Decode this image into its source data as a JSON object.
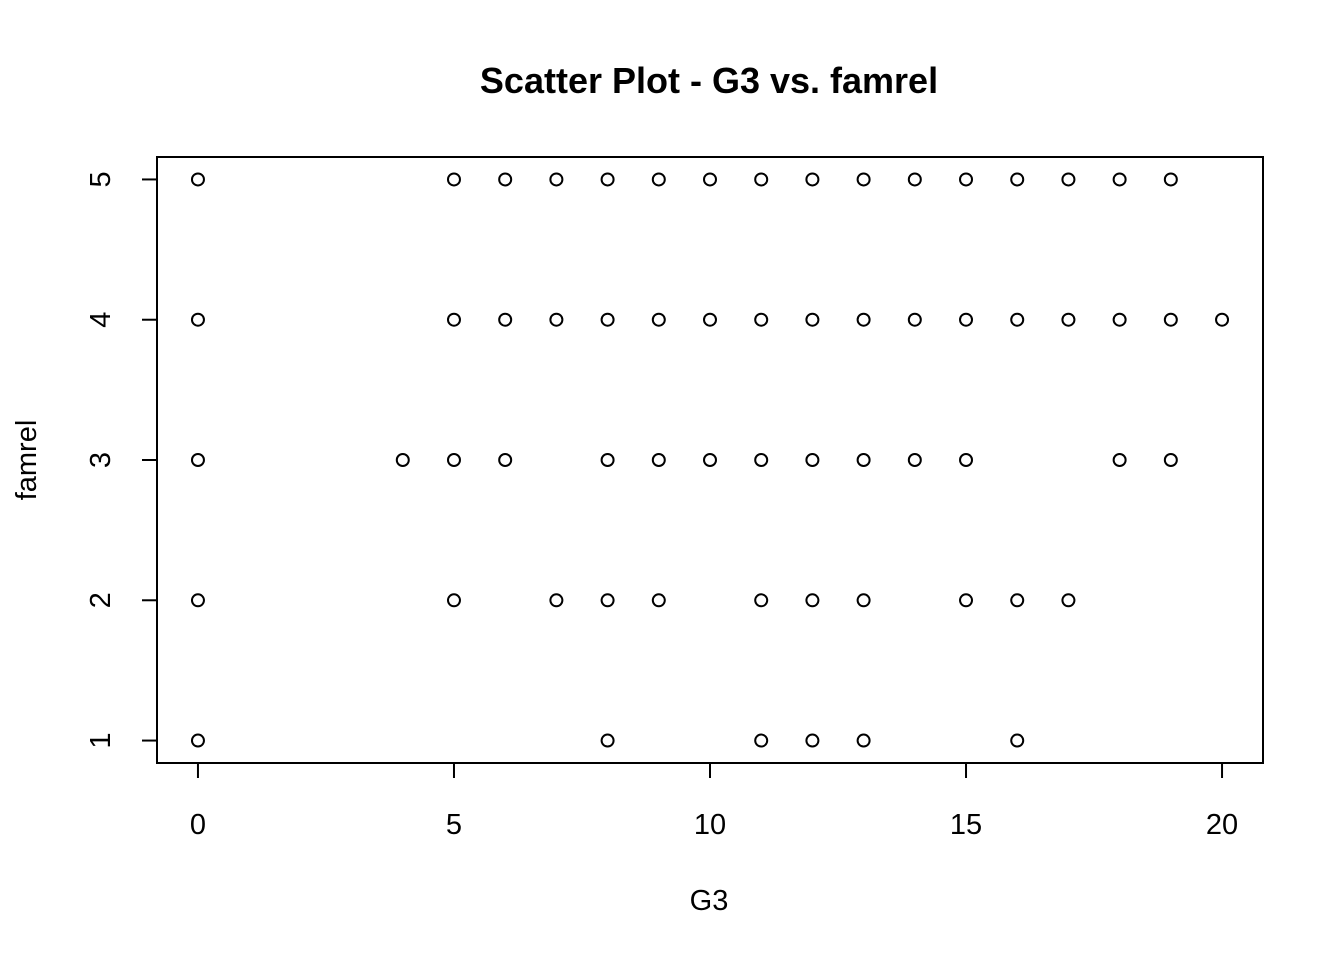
{
  "chart_data": {
    "type": "scatter",
    "title": "Scatter Plot - G3 vs. famrel",
    "xlabel": "G3",
    "ylabel": "famrel",
    "xlim": [
      -0.8,
      20.8
    ],
    "ylim": [
      0.84,
      5.16
    ],
    "x_ticks": [
      0,
      5,
      10,
      15,
      20
    ],
    "y_ticks": [
      1,
      2,
      3,
      4,
      5
    ],
    "grid": false,
    "points": [
      {
        "x": 0,
        "y": 5
      },
      {
        "x": 5,
        "y": 5
      },
      {
        "x": 6,
        "y": 5
      },
      {
        "x": 7,
        "y": 5
      },
      {
        "x": 8,
        "y": 5
      },
      {
        "x": 9,
        "y": 5
      },
      {
        "x": 10,
        "y": 5
      },
      {
        "x": 11,
        "y": 5
      },
      {
        "x": 12,
        "y": 5
      },
      {
        "x": 13,
        "y": 5
      },
      {
        "x": 14,
        "y": 5
      },
      {
        "x": 15,
        "y": 5
      },
      {
        "x": 16,
        "y": 5
      },
      {
        "x": 17,
        "y": 5
      },
      {
        "x": 18,
        "y": 5
      },
      {
        "x": 19,
        "y": 5
      },
      {
        "x": 0,
        "y": 4
      },
      {
        "x": 5,
        "y": 4
      },
      {
        "x": 6,
        "y": 4
      },
      {
        "x": 7,
        "y": 4
      },
      {
        "x": 8,
        "y": 4
      },
      {
        "x": 9,
        "y": 4
      },
      {
        "x": 10,
        "y": 4
      },
      {
        "x": 11,
        "y": 4
      },
      {
        "x": 12,
        "y": 4
      },
      {
        "x": 13,
        "y": 4
      },
      {
        "x": 14,
        "y": 4
      },
      {
        "x": 15,
        "y": 4
      },
      {
        "x": 16,
        "y": 4
      },
      {
        "x": 17,
        "y": 4
      },
      {
        "x": 18,
        "y": 4
      },
      {
        "x": 19,
        "y": 4
      },
      {
        "x": 20,
        "y": 4
      },
      {
        "x": 0,
        "y": 3
      },
      {
        "x": 4,
        "y": 3
      },
      {
        "x": 5,
        "y": 3
      },
      {
        "x": 6,
        "y": 3
      },
      {
        "x": 8,
        "y": 3
      },
      {
        "x": 9,
        "y": 3
      },
      {
        "x": 10,
        "y": 3
      },
      {
        "x": 11,
        "y": 3
      },
      {
        "x": 12,
        "y": 3
      },
      {
        "x": 13,
        "y": 3
      },
      {
        "x": 14,
        "y": 3
      },
      {
        "x": 15,
        "y": 3
      },
      {
        "x": 18,
        "y": 3
      },
      {
        "x": 19,
        "y": 3
      },
      {
        "x": 0,
        "y": 2
      },
      {
        "x": 5,
        "y": 2
      },
      {
        "x": 7,
        "y": 2
      },
      {
        "x": 8,
        "y": 2
      },
      {
        "x": 9,
        "y": 2
      },
      {
        "x": 11,
        "y": 2
      },
      {
        "x": 12,
        "y": 2
      },
      {
        "x": 13,
        "y": 2
      },
      {
        "x": 15,
        "y": 2
      },
      {
        "x": 16,
        "y": 2
      },
      {
        "x": 17,
        "y": 2
      },
      {
        "x": 0,
        "y": 1
      },
      {
        "x": 8,
        "y": 1
      },
      {
        "x": 11,
        "y": 1
      },
      {
        "x": 12,
        "y": 1
      },
      {
        "x": 13,
        "y": 1
      },
      {
        "x": 16,
        "y": 1
      }
    ]
  }
}
